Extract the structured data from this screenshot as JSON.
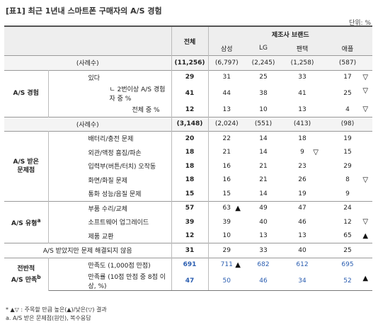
{
  "header": {
    "title": "[표1] 최근 1년내 스마트폰 구매자의 A/S 경험",
    "unit": "단위: %"
  },
  "columns": {
    "total": "전체",
    "brand_group": "제조사 브랜드",
    "brands": [
      "삼성",
      "LG",
      "팬택",
      "애플"
    ]
  },
  "sections": [
    {
      "rows": [
        {
          "label": "(사례수)",
          "total": "(11,256)",
          "brands": [
            "(6,797)",
            "(2,245)",
            "(1,258)",
            "(587)"
          ]
        }
      ]
    },
    {
      "group": {
        "lines": [
          "A/S 경험"
        ]
      },
      "rows": [
        {
          "label": "있다",
          "total": 29,
          "brands": [
            31,
            25,
            33,
            {
              "value": 17,
              "mark": "▽"
            }
          ]
        },
        {
          "label": "ㄴ 2번이상 A/S 경험자 중 %",
          "total": 41,
          "brands": [
            44,
            38,
            41,
            {
              "value": 25,
              "mark": "▽"
            }
          ]
        },
        {
          "label": "전체 중 %",
          "total": 12,
          "brands": [
            13,
            10,
            13,
            {
              "value": 4,
              "mark": "▽"
            }
          ]
        }
      ]
    },
    {
      "rows": [
        {
          "label": "(사례수)",
          "total": "(3,148)",
          "brands": [
            "(2,024)",
            "(551)",
            "(413)",
            "(98)"
          ]
        }
      ]
    },
    {
      "group": {
        "lines": [
          "A/S 받은",
          "문제점"
        ]
      },
      "rows": [
        {
          "label": "배터리/충전 문제",
          "total": 20,
          "brands": [
            22,
            14,
            18,
            19
          ]
        },
        {
          "label": "외관/액정 흠집/파손",
          "total": 18,
          "brands": [
            21,
            14,
            {
              "value": 9,
              "mark": "▽"
            },
            15
          ]
        },
        {
          "label": "입력부(버튼/터치) 오작동",
          "total": 18,
          "brands": [
            16,
            21,
            23,
            29
          ]
        },
        {
          "label": "화면/화질 문제",
          "total": 18,
          "brands": [
            16,
            21,
            26,
            {
              "value": 8,
              "mark": "▽"
            }
          ]
        },
        {
          "label": "통화 성능/음질 문제",
          "total": 15,
          "brands": [
            15,
            14,
            19,
            9
          ]
        }
      ]
    },
    {
      "group": {
        "lines": [
          "A/S 유형"
        ],
        "sup": "a"
      },
      "rows": [
        {
          "label": "부품 수리/교체",
          "total": 57,
          "brands": [
            {
              "value": 63,
              "mark": "▲"
            },
            49,
            47,
            24
          ]
        },
        {
          "label": "소프트웨어 업그레이드",
          "total": 39,
          "brands": [
            39,
            40,
            46,
            {
              "value": 12,
              "mark": "▽"
            }
          ]
        },
        {
          "label": "제품 교환",
          "total": 12,
          "brands": [
            10,
            13,
            13,
            {
              "value": 65,
              "mark": "▲"
            }
          ]
        }
      ]
    },
    {
      "rows": [
        {
          "label": "A/S 받았지만 문제 해결되지 않음",
          "total": 31,
          "brands": [
            29,
            33,
            40,
            25
          ]
        }
      ]
    },
    {
      "group": {
        "lines": [
          "전반적",
          "A/S 만족"
        ],
        "sup": "b"
      },
      "color": "#2a5db0",
      "rows": [
        {
          "label": "만족도 (1,000점 만점)",
          "total": 691,
          "brands": [
            {
              "value": 711,
              "mark": "▲"
            },
            682,
            612,
            695
          ]
        },
        {
          "label": "만족률 (10점 만점 중 8점 이상, %)",
          "total": 47,
          "brands": [
            50,
            46,
            34,
            {
              "value": 52,
              "mark": "▲"
            }
          ]
        }
      ]
    }
  ],
  "footnotes": [
    "* ▲▽ : 주목할 만큼 높은(▲)/낮은(▽) 결과",
    "a. A/S 받은 문제점(원인), 복수응답"
  ]
}
